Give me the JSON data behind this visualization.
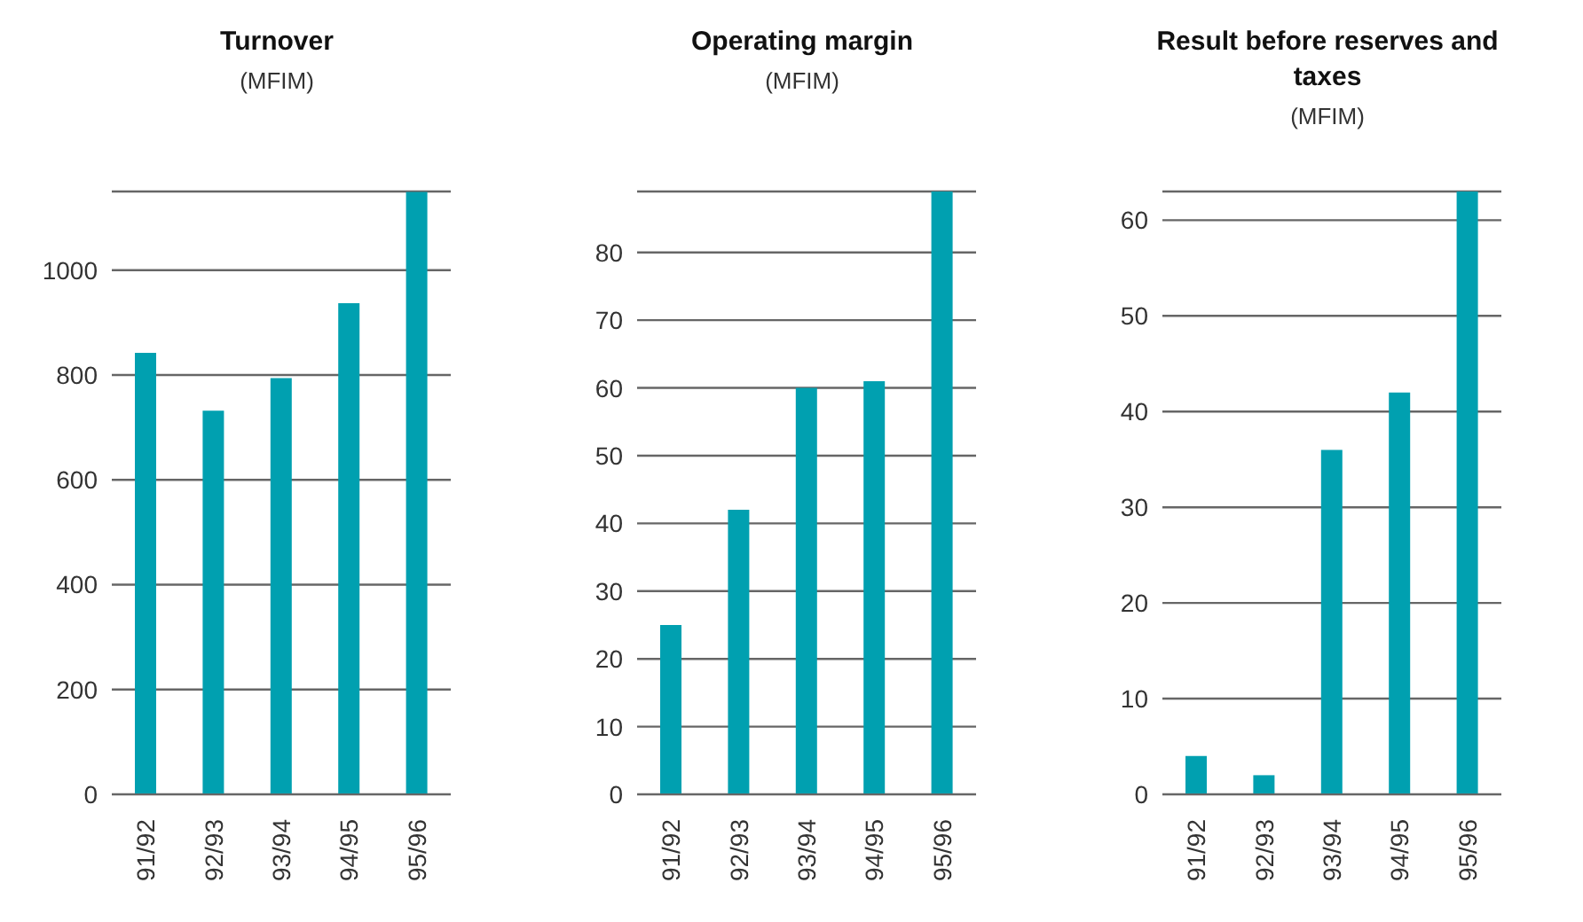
{
  "chart_data": [
    {
      "type": "bar",
      "title": "Turnover",
      "subtitle": "(MFIM)",
      "categories": [
        "91/92",
        "92/93",
        "93/94",
        "94/95",
        "95/96"
      ],
      "values": [
        842,
        732,
        794,
        937,
        1149
      ],
      "color": "#00a0b0",
      "ylim": [
        0,
        1150
      ],
      "yticks": [
        0,
        200,
        400,
        600,
        800,
        1000
      ],
      "grid": "y"
    },
    {
      "type": "bar",
      "title": "Operating margin",
      "subtitle": "(MFIM)",
      "categories": [
        "91/92",
        "92/93",
        "93/94",
        "94/95",
        "95/96"
      ],
      "values": [
        25,
        42,
        60,
        61,
        89
      ],
      "color": "#00a0b0",
      "ylim": [
        0,
        89
      ],
      "yticks": [
        0,
        10,
        20,
        30,
        40,
        50,
        60,
        70,
        80
      ],
      "grid": "y"
    },
    {
      "type": "bar",
      "title": "Result before reserves and taxes",
      "subtitle": "(MFIM)",
      "categories": [
        "91/92",
        "92/93",
        "93/94",
        "94/95",
        "95/96"
      ],
      "values": [
        4,
        2,
        36,
        42,
        63
      ],
      "color": "#00a0b0",
      "ylim": [
        0,
        63
      ],
      "yticks": [
        0,
        10,
        20,
        30,
        40,
        50,
        60
      ],
      "grid": "y"
    }
  ]
}
